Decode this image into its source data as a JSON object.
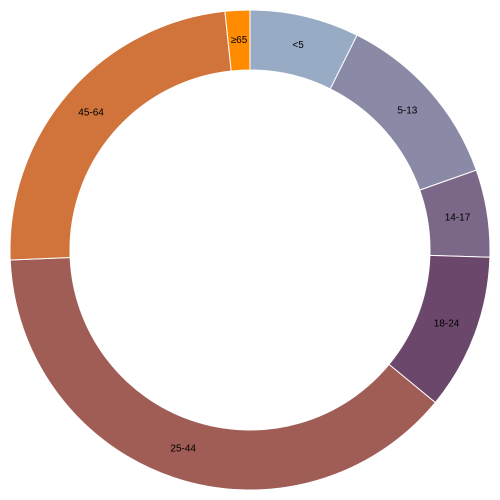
{
  "chart_data": {
    "type": "donut",
    "categories": [
      "<5",
      "5-13",
      "14-17",
      "18-24",
      "25-44",
      "45-64",
      "≥65"
    ],
    "values": [
      2704659,
      4499890,
      2159981,
      3853788,
      14106543,
      8819342,
      612463
    ],
    "colors": [
      "#98abc5",
      "#8a89a6",
      "#7b6888",
      "#6b486b",
      "#a05d56",
      "#d0743c",
      "#ff8c00"
    ]
  }
}
